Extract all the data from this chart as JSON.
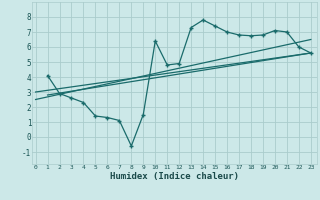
{
  "xlabel": "Humidex (Indice chaleur)",
  "bg_color": "#cce8e8",
  "grid_color": "#aacccc",
  "line_color": "#1a6b6b",
  "line_data_x": [
    1,
    2,
    3,
    4,
    5,
    6,
    7,
    8,
    9,
    10,
    11,
    12,
    13,
    14,
    15,
    16,
    17,
    18,
    19,
    20,
    21,
    22,
    23
  ],
  "line_data_y": [
    4.1,
    2.9,
    2.6,
    2.3,
    1.4,
    1.3,
    1.1,
    -0.6,
    1.5,
    6.4,
    4.8,
    4.9,
    7.3,
    7.8,
    7.4,
    7.0,
    6.8,
    6.75,
    6.8,
    7.1,
    7.0,
    6.0,
    5.6
  ],
  "reg_line1_x": [
    0,
    23
  ],
  "reg_line1_y": [
    3.0,
    5.6
  ],
  "reg_line2_x": [
    0,
    23
  ],
  "reg_line2_y": [
    2.5,
    6.5
  ],
  "reg_line3_x": [
    1,
    23
  ],
  "reg_line3_y": [
    2.8,
    5.6
  ],
  "xlim": [
    -0.3,
    23.5
  ],
  "ylim": [
    -1.8,
    9.0
  ],
  "xticks": [
    0,
    1,
    2,
    3,
    4,
    5,
    6,
    7,
    8,
    9,
    10,
    11,
    12,
    13,
    14,
    15,
    16,
    17,
    18,
    19,
    20,
    21,
    22,
    23
  ],
  "yticks": [
    -1,
    0,
    1,
    2,
    3,
    4,
    5,
    6,
    7,
    8
  ]
}
